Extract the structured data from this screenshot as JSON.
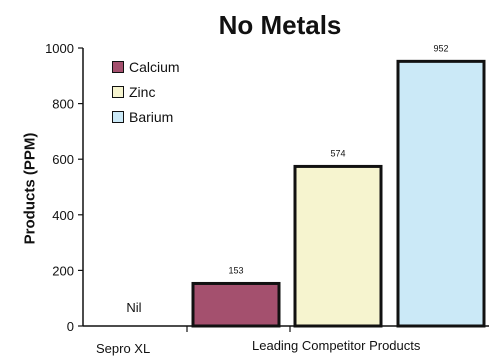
{
  "chart_data": {
    "type": "bar",
    "title": "No Metals",
    "ylabel": "Products (PPM)",
    "xlabel": "",
    "ylim": [
      0,
      1000
    ],
    "yticks": [
      0,
      200,
      400,
      600,
      800,
      1000
    ],
    "categories": [
      "Sepro XL",
      "Leading Competitor Products"
    ],
    "nil_label": "Nil",
    "series": [
      {
        "name": "Calcium",
        "value": 153,
        "label": "153",
        "color": "#a4506e"
      },
      {
        "name": "Zinc",
        "value": 574,
        "label": "574",
        "color": "#f6f4cf"
      },
      {
        "name": "Barium",
        "value": 952,
        "label": "952",
        "color": "#cbe9f7"
      }
    ],
    "grid": false,
    "legend_position": "top-left"
  }
}
